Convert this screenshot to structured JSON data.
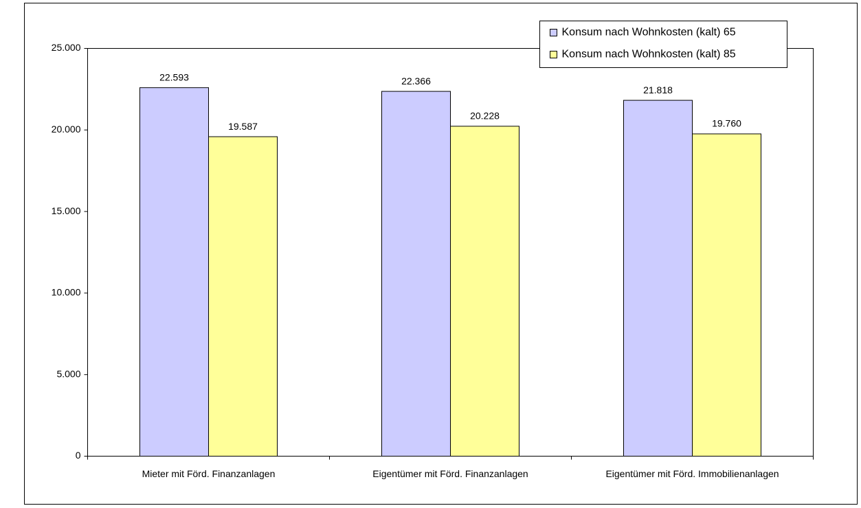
{
  "chart_data": {
    "type": "bar",
    "categories": [
      "Mieter mit Förd. Finanzanlagen",
      "Eigentümer mit Förd. Finanzanlagen",
      "Eigentümer mit Förd. Immobilienanlagen"
    ],
    "series": [
      {
        "name": "Konsum nach Wohnkosten (kalt) 65",
        "color": "#ccccff",
        "values": [
          22593,
          22366,
          21818
        ],
        "value_labels": [
          "22.593",
          "22.366",
          "21.818"
        ]
      },
      {
        "name": "Konsum nach Wohnkosten (kalt) 85",
        "color": "#ffff99",
        "values": [
          19587,
          20228,
          19760
        ],
        "value_labels": [
          "19.587",
          "20.228",
          "19.760"
        ]
      }
    ],
    "ylim": [
      0,
      25000
    ],
    "yticks": [
      0,
      {
        "value": 5000,
        "label": "5.000"
      },
      {
        "value": 10000,
        "label": "10.000"
      },
      {
        "value": 15000,
        "label": "15.000"
      },
      {
        "value": 20000,
        "label": "20.000"
      },
      {
        "value": 25000,
        "label": "25.000"
      }
    ],
    "grid": false,
    "legend": "top-right"
  }
}
